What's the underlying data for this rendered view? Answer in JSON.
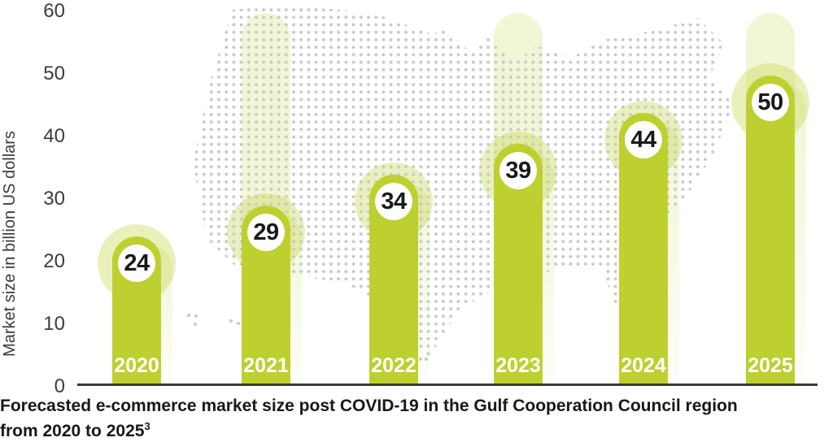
{
  "colors": {
    "bar": "#bdd02f",
    "bar_light": "rgba(189,208,47,0.32)",
    "band_light": "rgba(189,208,47,0.20)",
    "map_dots": "#c9c9c9",
    "axis_line": "#3a3a3a",
    "tick_text": "#3c3c3c",
    "caption_text": "#17181b",
    "badge_text": "#191919",
    "year_text": "#ffffff"
  },
  "y_axis": {
    "label": "Market size in billion US dollars",
    "ticks": [
      "60",
      "50",
      "40",
      "30",
      "20",
      "10",
      "0"
    ]
  },
  "bars": [
    {
      "year": "2020",
      "value": 24,
      "ghost_band": false
    },
    {
      "year": "2021",
      "value": 29,
      "ghost_band": true
    },
    {
      "year": "2022",
      "value": 34,
      "ghost_band": false
    },
    {
      "year": "2023",
      "value": 39,
      "ghost_band": true
    },
    {
      "year": "2024",
      "value": 44,
      "ghost_band": false
    },
    {
      "year": "2025",
      "value": 50,
      "ghost_band": true
    }
  ],
  "caption": {
    "line1": "Forecasted e-commerce market size post COVID-19 in the Gulf Cooperation Council region",
    "line2": "from 2020 to 2025",
    "footnote": "3"
  },
  "map": {
    "name": "usa-dotted-map"
  },
  "chart_data": {
    "type": "bar",
    "categories": [
      "2020",
      "2021",
      "2022",
      "2023",
      "2024",
      "2025"
    ],
    "values": [
      24,
      29,
      34,
      39,
      44,
      50
    ],
    "data_labels": [
      24,
      29,
      34,
      39,
      44,
      50
    ],
    "title": "Forecasted e-commerce market size post COVID-19 in the Gulf Cooperation Council region from 2020 to 2025",
    "title_footnote_superscript": "3",
    "xlabel": "",
    "ylabel": "Market size in billion US dollars",
    "ylim": [
      0,
      60
    ],
    "yticks": [
      0,
      10,
      20,
      30,
      40,
      50,
      60
    ],
    "grid": false,
    "legend": false,
    "bar_color": "#bdd02f",
    "background": "dotted map of the United States in light gray",
    "ghost_highlight_columns": [
      "2021",
      "2023",
      "2025"
    ]
  }
}
